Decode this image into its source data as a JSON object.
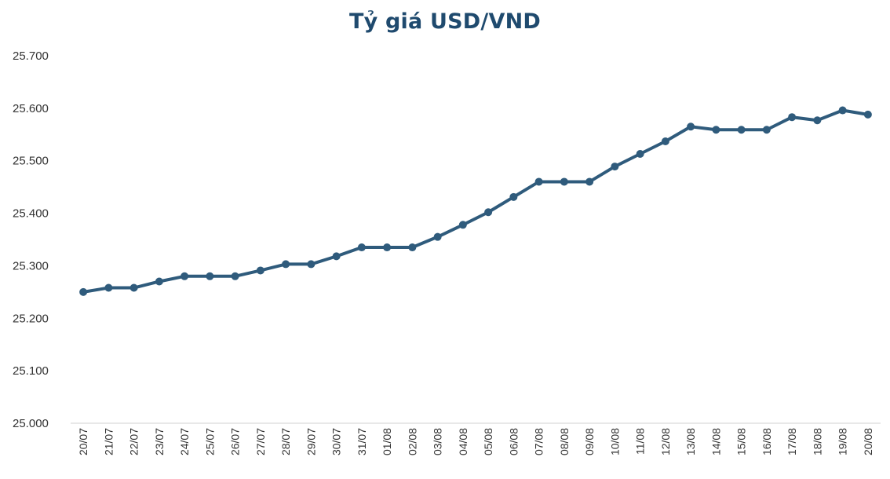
{
  "chart_data": {
    "type": "line",
    "title": "Tỷ giá USD/VND",
    "xlabel": "",
    "ylabel": "",
    "ylim": [
      25000,
      25700
    ],
    "y_ticks": [
      25000,
      25100,
      25200,
      25300,
      25400,
      25500,
      25600,
      25700
    ],
    "y_tick_labels": [
      "25.000",
      "25.100",
      "25.200",
      "25.300",
      "25.400",
      "25.500",
      "25.600",
      "25.700"
    ],
    "grid": false,
    "legend": "none",
    "categories": [
      "20/07",
      "21/07",
      "22/07",
      "23/07",
      "24/07",
      "25/07",
      "26/07",
      "27/07",
      "28/07",
      "29/07",
      "30/07",
      "31/07",
      "01/08",
      "02/08",
      "03/08",
      "04/08",
      "05/08",
      "06/08",
      "07/08",
      "08/08",
      "09/08",
      "10/08",
      "11/08",
      "12/08",
      "13/08",
      "14/08",
      "15/08",
      "16/08",
      "17/08",
      "18/08",
      "19/08",
      "20/08"
    ],
    "series": [
      {
        "color": "#2f5b7c",
        "values": [
          25250,
          25258,
          25258,
          25270,
          25280,
          25280,
          25280,
          25291,
          25303,
          25303,
          25318,
          25335,
          25335,
          25335,
          25355,
          25378,
          25402,
          25431,
          25460,
          25460,
          25460,
          25489,
          25513,
          25537,
          25565,
          25559,
          25559,
          25559,
          25583,
          25577,
          25596,
          25588
        ]
      }
    ]
  }
}
